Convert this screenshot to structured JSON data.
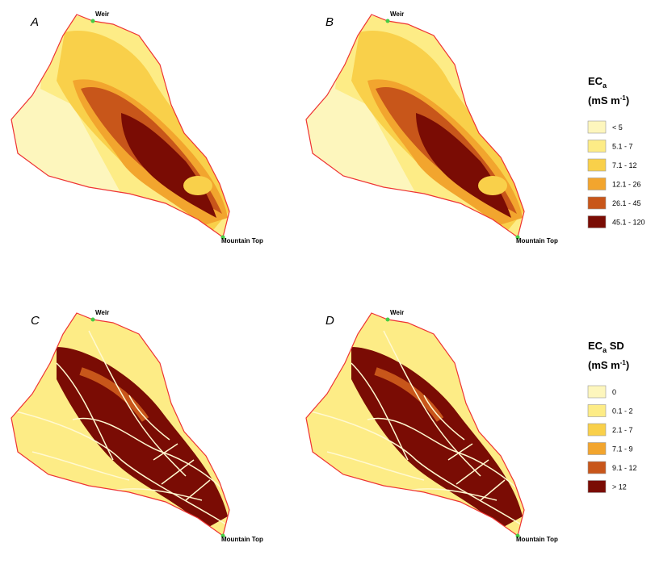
{
  "panels": [
    {
      "label": "A"
    },
    {
      "label": "B"
    },
    {
      "label": "C"
    },
    {
      "label": "D"
    }
  ],
  "sites": {
    "outlet": "Weir",
    "summit": "Mountain Top"
  },
  "legends": [
    {
      "title": {
        "main": "EC",
        "sub": "a",
        "unit": "(mS m",
        "sup": "-1",
        "close": ")"
      },
      "items": [
        {
          "label": "< 5",
          "color": "#fdf6bd"
        },
        {
          "label": "5.1 - 7",
          "color": "#fdec86"
        },
        {
          "label": "7.1 - 12",
          "color": "#f9d04a"
        },
        {
          "label": "12.1 - 26",
          "color": "#f2a52e"
        },
        {
          "label": "26.1 - 45",
          "color": "#c8561a"
        },
        {
          "label": "45.1 - 120",
          "color": "#7a0c04"
        }
      ]
    },
    {
      "title": {
        "main": "EC",
        "sub": "a",
        "extra": " SD",
        "unit": "(mS m",
        "sup": "-1",
        "close": ")"
      },
      "items": [
        {
          "label": "0",
          "color": "#fdf6bd"
        },
        {
          "label": "0.1 - 2",
          "color": "#fdec86"
        },
        {
          "label": "2.1 - 7",
          "color": "#f9d04a"
        },
        {
          "label": "7.1 - 9",
          "color": "#f2a52e"
        },
        {
          "label": "9.1 - 12",
          "color": "#c8561a"
        },
        {
          "label": "> 12",
          "color": "#7a0c04"
        }
      ]
    }
  ]
}
